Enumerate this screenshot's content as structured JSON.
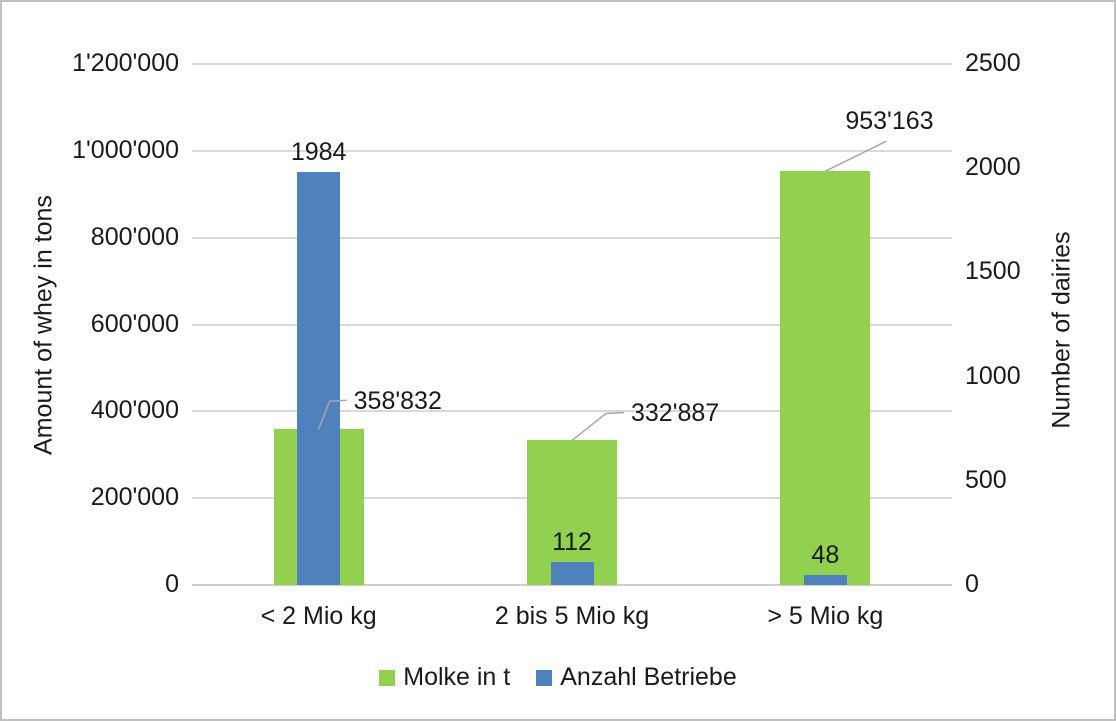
{
  "chart_data": {
    "type": "bar",
    "title": "",
    "categories": [
      "< 2 Mio kg",
      "2 bis 5 Mio kg",
      "> 5 Mio kg"
    ],
    "series": [
      {
        "name": "Molke in t",
        "axis": "left",
        "color": "#92d050",
        "values": [
          358832,
          332887,
          953163
        ],
        "value_labels": [
          "358'832",
          "332'887",
          "953'163"
        ],
        "label_style": "callout"
      },
      {
        "name": "Anzahl Betriebe",
        "axis": "right",
        "color": "#4f81bd",
        "values": [
          1984,
          112,
          48
        ],
        "value_labels": [
          "1984",
          "112",
          "48"
        ],
        "label_style": "above"
      }
    ],
    "ylabel_left": "Amount of whey in tons",
    "ylabel_right": "Number of dairies",
    "ylim_left": [
      0,
      1200000
    ],
    "ylim_right": [
      0,
      2500
    ],
    "yticks_left": [
      "0",
      "200'000",
      "400'000",
      "600'000",
      "800'000",
      "1'000'000",
      "1'200'000"
    ],
    "yticks_right": [
      "0",
      "500",
      "1000",
      "1500",
      "2000",
      "2500"
    ],
    "grid": true,
    "legend_position": "bottom"
  },
  "colors": {
    "green_series": "#92d050",
    "blue_series": "#4f81bd",
    "gridline": "#d9d9d9",
    "leader_line": "#a6a6a6",
    "text": "#1a1a1a",
    "frame_border": "#bfbfbf",
    "background": "#ffffff"
  }
}
